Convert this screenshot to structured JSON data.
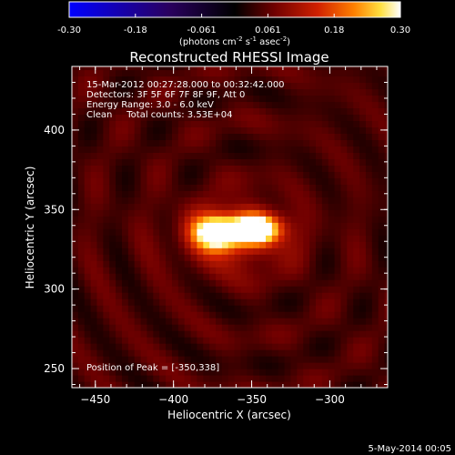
{
  "chart_data": {
    "type": "heatmap",
    "title": "Reconstructed RHESSI Image",
    "xlabel": "Heliocentric X (arcsec)",
    "ylabel": "Heliocentric Y (arcsec)",
    "xlim": [
      -465,
      -263
    ],
    "ylim": [
      238,
      440
    ],
    "xticks": [
      -450,
      -400,
      -350,
      -300
    ],
    "yticks": [
      250,
      300,
      350,
      400
    ],
    "colorbar": {
      "ticks": [
        "-0.30",
        "-0.18",
        "-0.061",
        "0.061",
        "0.18",
        "0.30"
      ],
      "range": [
        -0.3,
        0.3
      ],
      "label_base": "(photons cm",
      "label_exp1": "-2",
      "label_mid1": " s",
      "label_exp2": "-1",
      "label_mid2": " asec",
      "label_exp3": "-2",
      "label_end": ")",
      "colormap": [
        "#0000ff",
        "#000000",
        "#7a0000",
        "#ff7a00",
        "#ffff80",
        "#ffffff"
      ]
    },
    "annotations": [
      "15-Mar-2012 00:27:28.000 to 00:32:42.000",
      "Detectors: 3F 5F 6F 7F 8F 9F, Att 0",
      "Energy Range: 3.0 - 6.0 keV",
      "Clean     Total counts: 3.53E+04"
    ],
    "peak_label": "Position of Peak = [-350,338]",
    "peak": [
      -350,
      338
    ],
    "source": {
      "components": [
        {
          "x": -347,
          "y": 338,
          "sx": 10,
          "sy": 6,
          "amp": 0.3
        },
        {
          "x": -372,
          "y": 336,
          "sx": 10,
          "sy": 7,
          "amp": 0.28
        },
        {
          "x": -360,
          "y": 334,
          "sx": 24,
          "sy": 14,
          "amp": 0.12
        }
      ],
      "background": 0.045
    }
  },
  "footer": {
    "date": "5-May-2014 00:05"
  }
}
